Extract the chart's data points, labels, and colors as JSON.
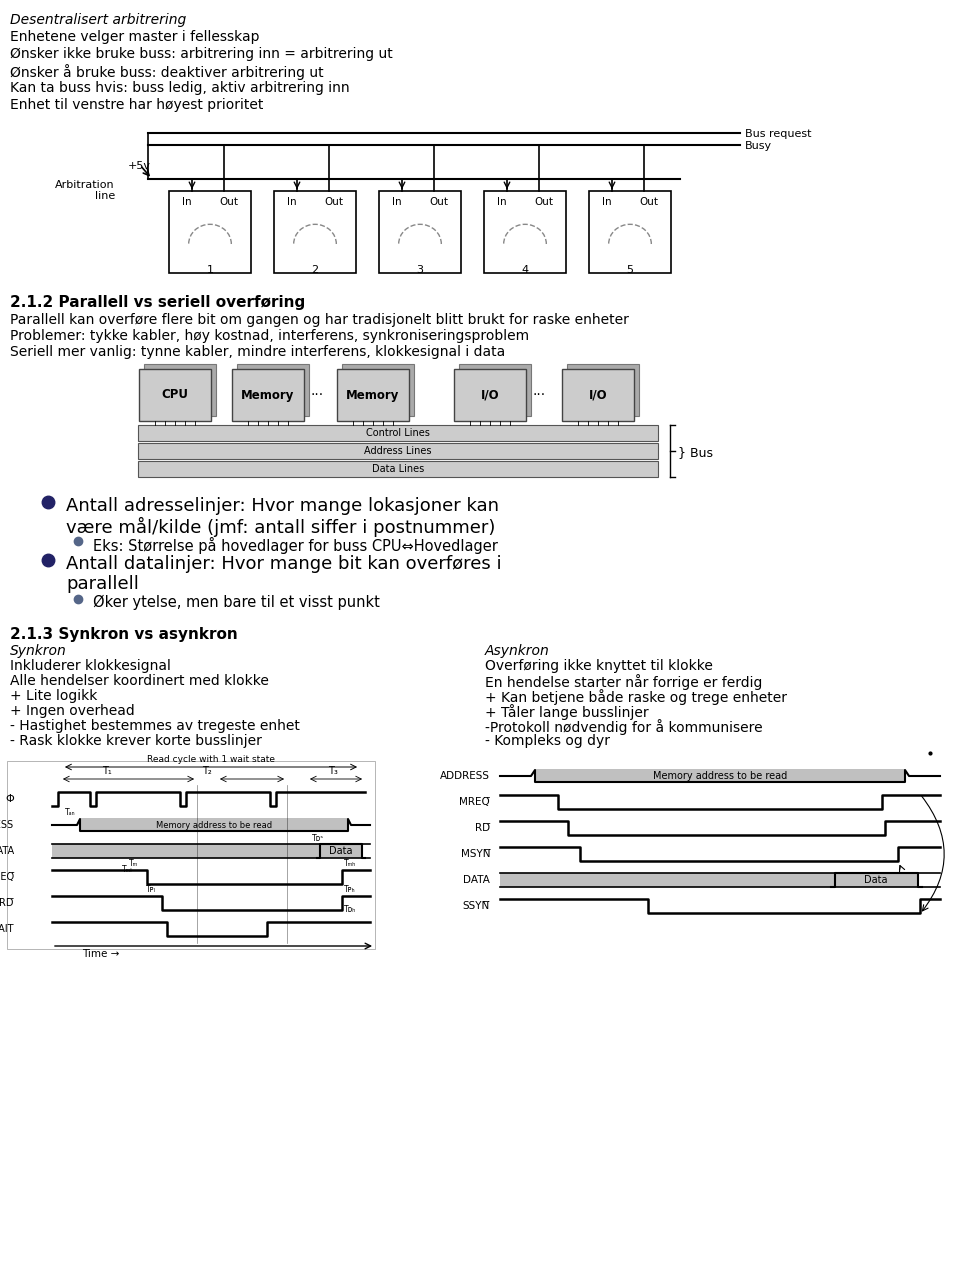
{
  "bg_color": "#ffffff",
  "top_text_italic": "Desentralisert arbitrering",
  "top_text_lines": [
    "Enhetene velger master i fellesskap",
    "Ønsker ikke bruke buss: arbitrering inn = arbitrering ut",
    "Ønsker å bruke buss: deaktiver arbitrering ut",
    "Kan ta buss hvis: buss ledig, aktiv arbitrering inn",
    "Enhet til venstre har høyest prioritet"
  ],
  "section2_title": "2.1.2 Parallell vs seriell overføring",
  "section2_lines": [
    "Parallell kan overføre flere bit om gangen og har tradisjonelt blitt brukt for raske enheter",
    "Problemer: tykke kabler, høy kostnad, interferens, synkroniseringsproblem",
    "Seriell mer vanlig: tynne kabler, mindre interferens, klokkesignal i data"
  ],
  "bullet1_main_l1": "Antall adresselinjer: Hvor mange lokasjoner kan",
  "bullet1_main_l2": "være mål/kilde (jmf: antall siffer i postnummer)",
  "bullet1_sub": "Eks: Størrelse på hovedlager for buss CPU⇔Hovedlager",
  "bullet2_main_l1": "Antall datalinjer: Hvor mange bit kan overføres i",
  "bullet2_main_l2": "parallell",
  "bullet2_sub": "Øker ytelse, men bare til et visst punkt",
  "section3_title": "2.1.3 Synkron vs asynkron",
  "synkron_label": "Synkron",
  "synkron_lines": [
    "Inkluderer klokkesignal",
    "Alle hendelser koordinert med klokke",
    "+ Lite logikk",
    "+ Ingen overhead",
    "- Hastighet bestemmes av tregeste enhet",
    "- Rask klokke krever korte busslinjer"
  ],
  "asynkron_label": "Asynkron",
  "asynkron_lines": [
    "Overføring ikke knyttet til klokke",
    "En hendelse starter når forrige er ferdig",
    "+ Kan betjene både raske og trege enheter",
    "+ Tåler lange busslinjer",
    "-Protokoll nødvendig for å kommunisere",
    "- Kompleks og dyr"
  ]
}
